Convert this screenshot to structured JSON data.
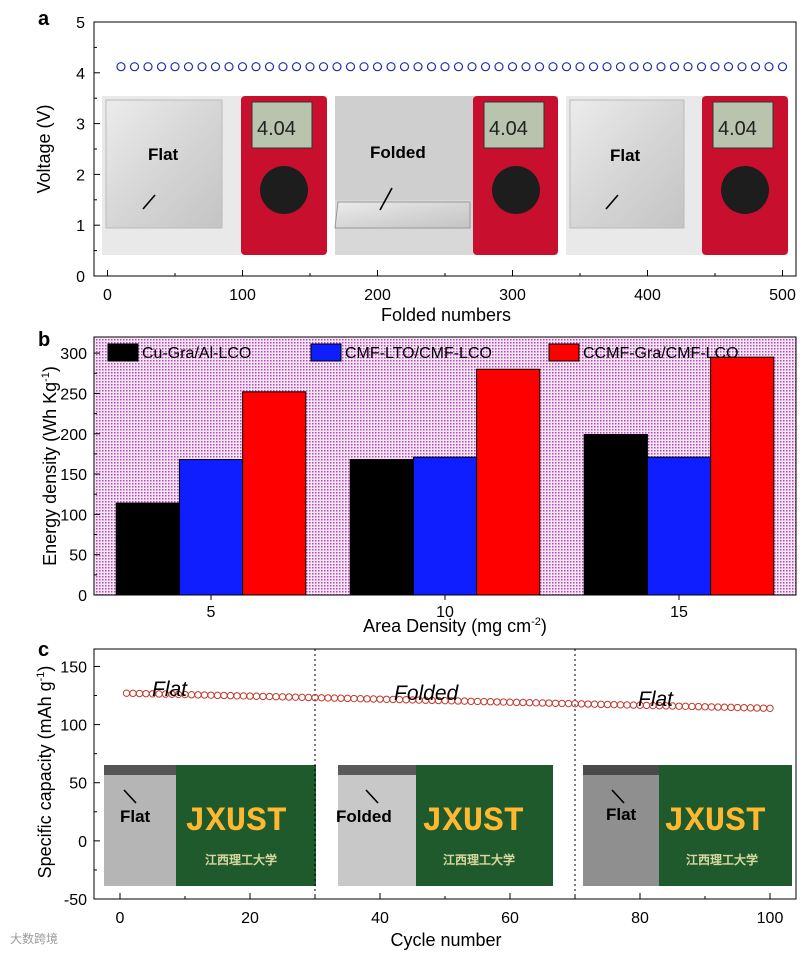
{
  "chart_data": [
    {
      "panel": "a",
      "type": "scatter",
      "xlabel": "Folded numbers",
      "ylabel": "Voltage (V)",
      "xlim": [
        -10,
        510
      ],
      "ylim": [
        0,
        5
      ],
      "xticks": [
        "0",
        "100",
        "200",
        "300",
        "400",
        "500"
      ],
      "yticks": [
        "0",
        "1",
        "2",
        "3",
        "4",
        "5"
      ],
      "series": [
        {
          "x_start": 10,
          "x_step": 10,
          "count": 50,
          "y": 4.12,
          "color": "#1f2ea8"
        }
      ],
      "inset_labels": [
        "Flat",
        "Folded",
        "Flat"
      ],
      "meter_reading": "4.04"
    },
    {
      "panel": "b",
      "type": "bar",
      "xlabel": "Area Density",
      "xlabel_unit": "(mg cm",
      "xlabel_sup": "-2",
      "xlabel_close": ")",
      "ylabel": "Energy density (Wh Kg",
      "ylabel_sup": "-1",
      "ylabel_close": ")",
      "ylim": [
        0,
        320
      ],
      "yticks": [
        "0",
        "50",
        "100",
        "150",
        "200",
        "250",
        "300"
      ],
      "categories": [
        "5",
        "10",
        "15"
      ],
      "legend_position": "top",
      "series": [
        {
          "name": "Cu-Gra/Al-LCO",
          "values": [
            114,
            168,
            199
          ],
          "color": "#000000"
        },
        {
          "name": "CMF-LTO/CMF-LCO",
          "values": [
            168,
            171,
            171
          ],
          "color": "#0f1eff"
        },
        {
          "name": "CCMF-Gra/CMF-LCO",
          "values": [
            252,
            280,
            295
          ],
          "color": "#ff0000"
        }
      ]
    },
    {
      "panel": "c",
      "type": "scatter",
      "xlabel": "Cycle number",
      "ylabel": "Specific capacity (mAh g",
      "ylabel_sup": "-1",
      "ylabel_close": ")",
      "xlim": [
        -4,
        104
      ],
      "ylim": [
        -50,
        165
      ],
      "xticks": [
        "0",
        "20",
        "40",
        "60",
        "80",
        "100"
      ],
      "yticks": [
        "-50",
        "0",
        "50",
        "100",
        "150"
      ],
      "series": [
        {
          "x_start": 1,
          "x_end": 100,
          "y_start": 127,
          "y_end": 114,
          "color": "#c0392b"
        }
      ],
      "dividers": [
        30,
        70
      ],
      "segment_labels": [
        "Flat",
        "Folded",
        "Flat"
      ],
      "inset_labels": [
        "Flat",
        "Folded",
        "Flat"
      ],
      "led_text": "JXUST",
      "led_subtext": "江西理工大学"
    }
  ],
  "watermark": "大数跨境"
}
